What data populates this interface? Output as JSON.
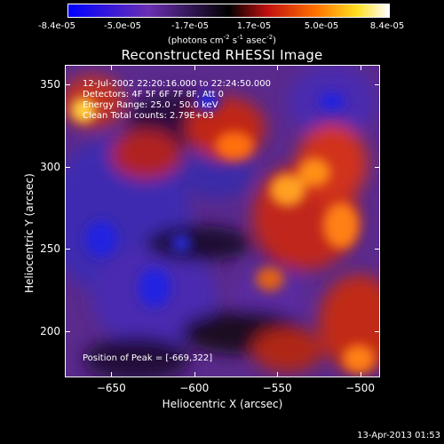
{
  "colorbar": {
    "tick_labels": [
      "-8.4e-05",
      "-5.0e-05",
      "-1.7e-05",
      "1.7e-05",
      "5.0e-05",
      "8.4e-05"
    ],
    "units_text": "(photons cm",
    "units_exp1": "-2",
    "units_mid": " s",
    "units_exp2": "-1",
    "units_mid2": " asec",
    "units_exp3": "-2",
    "units_end": ")"
  },
  "title": "Reconstructed RHESSI Image",
  "info": {
    "time": "12-Jul-2002 22:20:16.000 to 22:24:50.000",
    "detectors": "Detectors: 4F 5F 6F 7F 8F, Att 0",
    "energy": "Energy Range: 25.0 - 50.0 keV",
    "method": "Clean    Total counts: 2.79E+03"
  },
  "peak": "Position of Peak = [-669,322]",
  "timestamp": "13-Apr-2013 01:53",
  "chart_data": {
    "type": "heatmap",
    "title": "Reconstructed RHESSI Image",
    "xlabel": "Heliocentric X (arcsec)",
    "ylabel": "Heliocentric Y (arcsec)",
    "xlim": [
      -678,
      -488
    ],
    "ylim": [
      172,
      362
    ],
    "x_ticks": [
      -650,
      -600,
      -550,
      -500
    ],
    "y_ticks": [
      200,
      250,
      300,
      350
    ],
    "x_tick_labels": [
      "−650",
      "−600",
      "−550",
      "−500"
    ],
    "y_tick_labels": [
      "200",
      "250",
      "300",
      "350"
    ],
    "colorbar_range": [
      -8.4e-05,
      8.4e-05
    ],
    "colormap": [
      "#0000ff",
      "#6a2fb3",
      "#000000",
      "#c01010",
      "#ff7000",
      "#ffdf20",
      "#ffffff"
    ],
    "peak_position": [
      -669,
      322
    ]
  }
}
